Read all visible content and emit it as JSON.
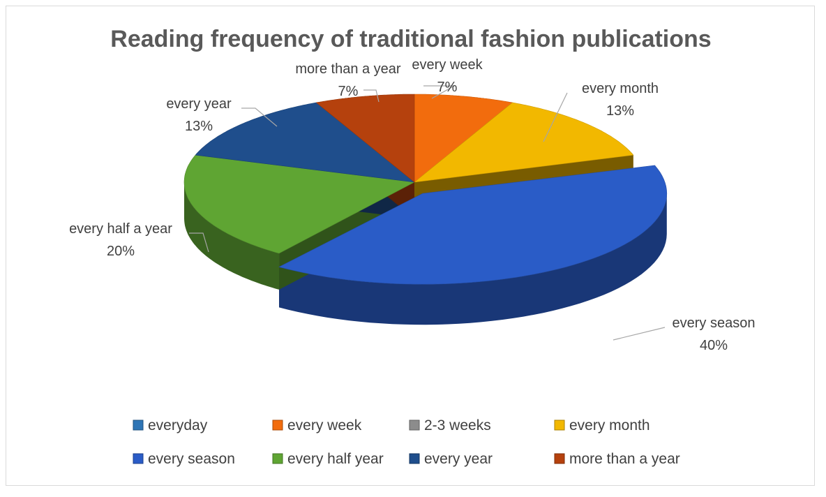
{
  "chart_data": {
    "type": "pie",
    "style": "3d-exploded",
    "title": "Reading frequency of traditional fashion publications",
    "categories": [
      "everyday",
      "every week",
      "2-3 weeks",
      "every month",
      "every season",
      "every half year",
      "every year",
      "more than a year"
    ],
    "values": [
      0,
      7,
      0,
      13,
      40,
      20,
      13,
      7
    ],
    "unit": "%",
    "colors": [
      "#2e75b6",
      "#f26c0d",
      "#8c8c8c",
      "#f2b800",
      "#2a5cc7",
      "#5fa533",
      "#1f4e8c",
      "#b5410d"
    ],
    "data_labels": [
      {
        "name": "every week",
        "value": "7%"
      },
      {
        "name": "every month",
        "value": "13%"
      },
      {
        "name": "every season",
        "value": "40%"
      },
      {
        "name": "every half a year",
        "value": "20%"
      },
      {
        "name": "every year",
        "value": "13%"
      },
      {
        "name": "more than a year",
        "value": "7%"
      }
    ],
    "legend": {
      "position": "bottom",
      "entries": [
        "everyday",
        "every week",
        "2-3 weeks",
        "every month",
        "every season",
        "every half year",
        "every year",
        "more than a year"
      ]
    },
    "exploded_slice": "every season"
  }
}
